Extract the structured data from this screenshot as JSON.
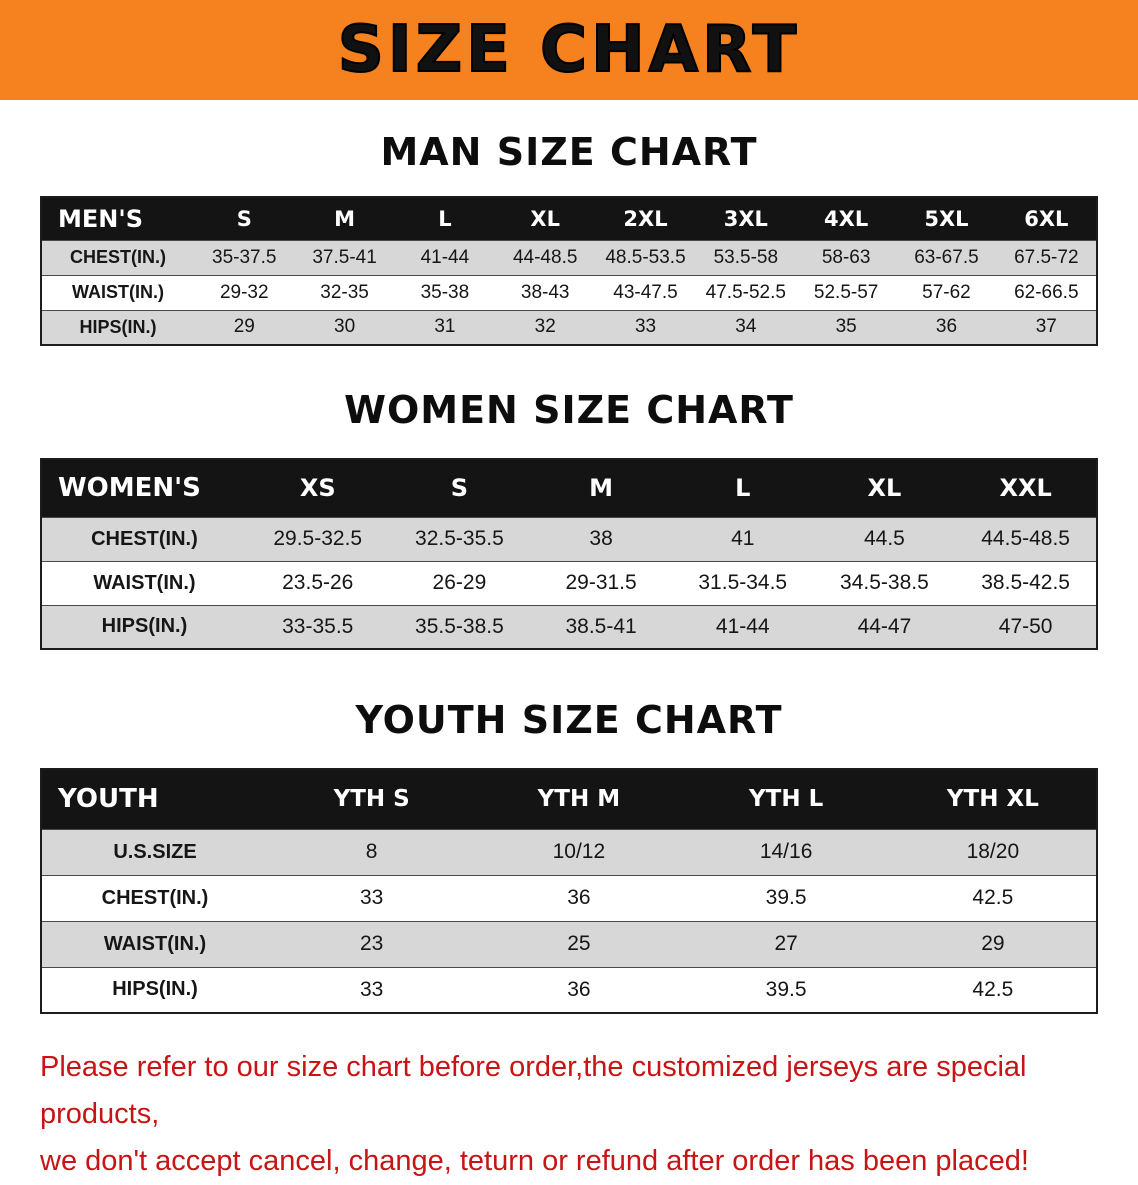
{
  "banner": {
    "title": "SIZE CHART"
  },
  "colors": {
    "banner-bg": "#f5821f",
    "banner-text": "#111111",
    "table-header-bg": "#141414",
    "table-header-text": "#ffffff",
    "row-stripe": "#d7d7d7",
    "notice-text": "#c81414"
  },
  "sections": [
    {
      "heading": "MAN SIZE CHART",
      "table": {
        "header_label": "MEN'S",
        "columns": [
          "S",
          "M",
          "L",
          "XL",
          "2XL",
          "3XL",
          "4XL",
          "5XL",
          "6XL"
        ],
        "rows": [
          {
            "label": "CHEST(IN.)",
            "values": [
              "35-37.5",
              "37.5-41",
              "41-44",
              "44-48.5",
              "48.5-53.5",
              "53.5-58",
              "58-63",
              "63-67.5",
              "67.5-72"
            ]
          },
          {
            "label": "WAIST(IN.)",
            "values": [
              "29-32",
              "32-35",
              "35-38",
              "38-43",
              "43-47.5",
              "47.5-52.5",
              "52.5-57",
              "57-62",
              "62-66.5"
            ]
          },
          {
            "label": "HIPS(IN.)",
            "values": [
              "29",
              "30",
              "31",
              "32",
              "33",
              "34",
              "35",
              "36",
              "37"
            ]
          }
        ]
      }
    },
    {
      "heading": "WOMEN SIZE CHART",
      "table": {
        "header_label": "WOMEN'S",
        "columns": [
          "XS",
          "S",
          "M",
          "L",
          "XL",
          "XXL"
        ],
        "rows": [
          {
            "label": "CHEST(IN.)",
            "values": [
              "29.5-32.5",
              "32.5-35.5",
              "38",
              "41",
              "44.5",
              "44.5-48.5"
            ]
          },
          {
            "label": "WAIST(IN.)",
            "values": [
              "23.5-26",
              "26-29",
              "29-31.5",
              "31.5-34.5",
              "34.5-38.5",
              "38.5-42.5"
            ]
          },
          {
            "label": "HIPS(IN.)",
            "values": [
              "33-35.5",
              "35.5-38.5",
              "38.5-41",
              "41-44",
              "44-47",
              "47-50"
            ]
          }
        ]
      }
    },
    {
      "heading": "YOUTH SIZE CHART",
      "table": {
        "header_label": "YOUTH",
        "columns": [
          "YTH S",
          "YTH M",
          "YTH L",
          "YTH XL"
        ],
        "rows": [
          {
            "label": "U.S.SIZE",
            "values": [
              "8",
              "10/12",
              "14/16",
              "18/20"
            ]
          },
          {
            "label": "CHEST(IN.)",
            "values": [
              "33",
              "36",
              "39.5",
              "42.5"
            ]
          },
          {
            "label": "WAIST(IN.)",
            "values": [
              "23",
              "25",
              "27",
              "29"
            ]
          },
          {
            "label": "HIPS(IN.)",
            "values": [
              "33",
              "36",
              "39.5",
              "42.5"
            ]
          }
        ]
      }
    }
  ],
  "footer": {
    "lines": [
      "Please refer to our size chart before order,the customized jerseys are special products,",
      "we don't accept cancel, change, teturn or refund after order has been placed!"
    ]
  }
}
